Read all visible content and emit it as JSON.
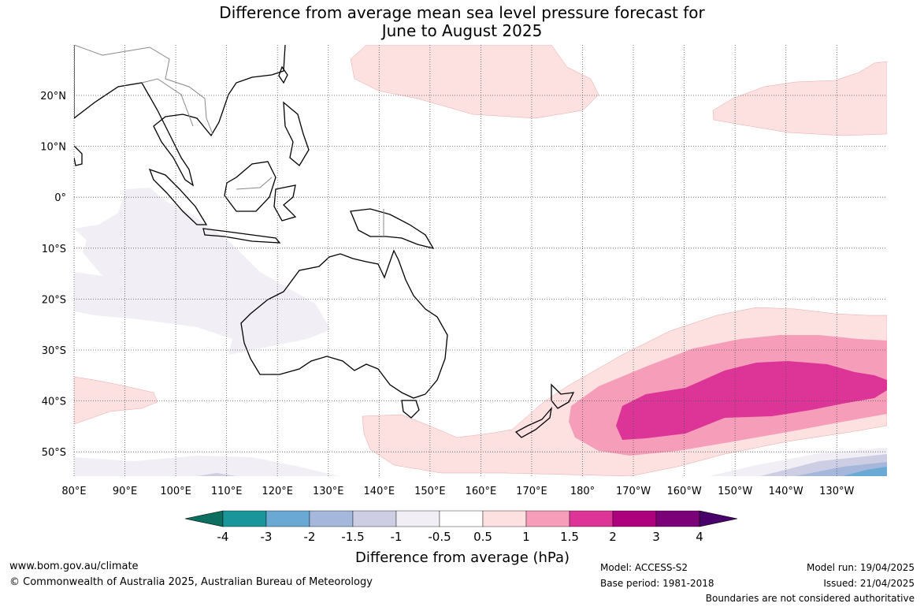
{
  "title_line1": "Difference from average mean sea level pressure forecast for",
  "title_line2": "June to August 2025",
  "map": {
    "lat_labels": [
      "20°N",
      "10°N",
      "0°",
      "10°S",
      "20°S",
      "30°S",
      "40°S",
      "50°S"
    ],
    "lon_labels": [
      "80°E",
      "90°E",
      "100°E",
      "110°E",
      "120°E",
      "130°E",
      "140°E",
      "150°E",
      "160°E",
      "170°E",
      "180°",
      "170°W",
      "160°W",
      "150°W",
      "140°W",
      "130°W"
    ]
  },
  "colorbar": {
    "label": "Difference from average (hPa)",
    "ticks": [
      "-4",
      "-3",
      "-2",
      "-1.5",
      "-1",
      "-0.5",
      "0.5",
      "1",
      "1.5",
      "2",
      "3",
      "4"
    ],
    "colors": {
      "under": "#0b6e5e",
      "bins": [
        "#1a9599",
        "#6aa9d4",
        "#a5b8dc",
        "#cdcde3",
        "#f1eff5",
        "#ffffff",
        "#fde0e0",
        "#f69eb9",
        "#dd3497",
        "#ae017e",
        "#7a0177"
      ],
      "over": "#49006a"
    }
  },
  "palette": {
    "pos_05_1": "#fde0e0",
    "pos_1_15": "#f69eb9",
    "pos_15_2": "#dd3497",
    "neg_05_1": "#f1eff5",
    "neg_1_15": "#cdcde3",
    "neg_15_2": "#a5b8dc",
    "neg_2_3": "#6aa9d4",
    "coast": "#000000",
    "borders": "#888888",
    "grid": "#555555"
  },
  "footer": {
    "website": "www.bom.gov.au/climate",
    "copyright": "© Commonwealth of Australia 2025, Australian Bureau of Meteorology",
    "model": "Model: ACCESS-S2",
    "base_period": "Base period: 1981-2018",
    "model_run": "Model run: 19/04/2025",
    "issued": "Issued: 21/04/2025",
    "disclaimer": "Boundaries are not considered authoritative"
  }
}
